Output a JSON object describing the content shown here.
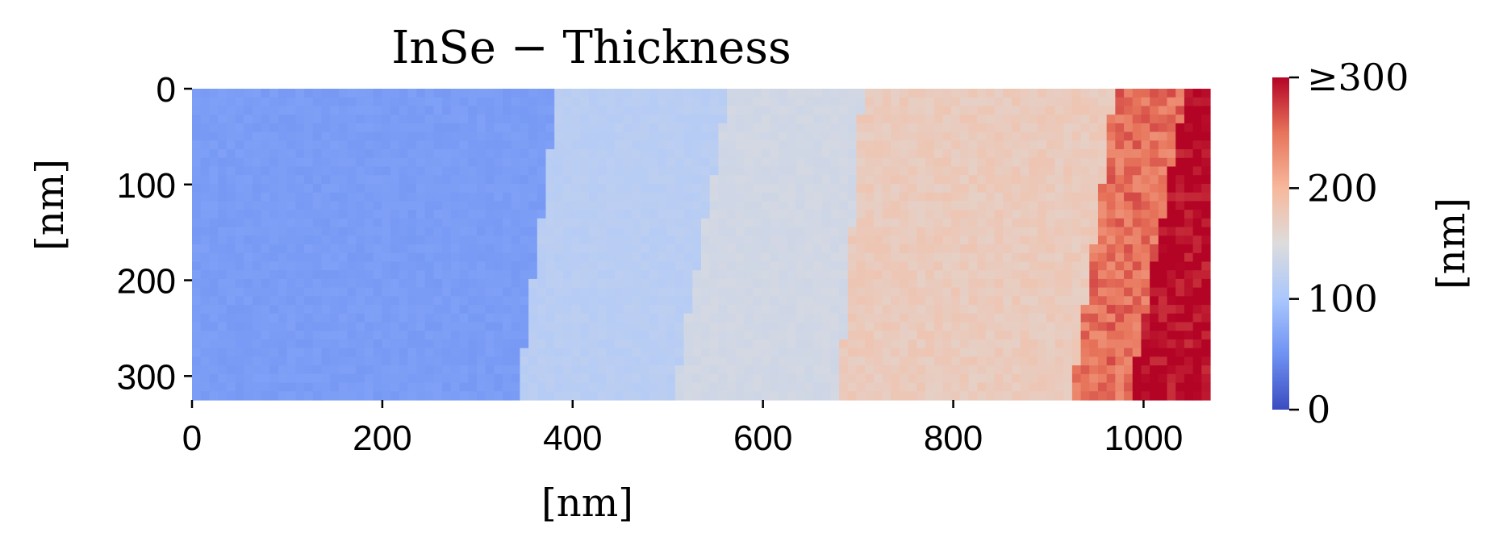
{
  "chart_data": {
    "type": "heatmap",
    "title": "InSe − Thickness",
    "xlabel": "[nm]",
    "ylabel": "[nm]",
    "xlim": [
      0,
      1070
    ],
    "ylim": [
      325,
      0
    ],
    "x_ticks": [
      0,
      200,
      400,
      600,
      800,
      1000
    ],
    "x_tick_labels": [
      "0",
      "200",
      "400",
      "600",
      "800",
      "1000"
    ],
    "y_ticks": [
      0,
      100,
      200,
      300
    ],
    "y_tick_labels": [
      "0",
      "100",
      "200",
      "300"
    ],
    "colorbar": {
      "label": "[nm]",
      "colormap": "coolwarm",
      "vmin": 0,
      "vmax": 300,
      "ticks": [
        0,
        100,
        200,
        300
      ],
      "tick_labels": [
        "0",
        "100",
        "200",
        "≥300"
      ],
      "colors": [
        "#3b4cc0",
        "#6f92f3",
        "#aac7fd",
        "#dddcdc",
        "#f7b89c",
        "#e7745b",
        "#b40426"
      ]
    },
    "grid": false,
    "regions": [
      {
        "name": "band-1",
        "x_range_top": [
          0,
          385
        ],
        "x_range_bottom": [
          0,
          342
        ],
        "thickness_nm": 60
      },
      {
        "name": "band-2",
        "x_range_top": [
          385,
          565
        ],
        "x_range_bottom": [
          342,
          505
        ],
        "thickness_nm": 115
      },
      {
        "name": "band-3",
        "x_range_top": [
          565,
          705
        ],
        "x_range_bottom": [
          505,
          680
        ],
        "thickness_nm": 138
      },
      {
        "name": "band-4",
        "x_range_top": [
          705,
          970
        ],
        "x_range_bottom": [
          680,
          925
        ],
        "thickness_nm": 175
      },
      {
        "name": "band-5",
        "x_range_top": [
          970,
          1045
        ],
        "x_range_bottom": [
          925,
          985
        ],
        "thickness_nm": 250
      },
      {
        "name": "band-6",
        "x_range_top": [
          1045,
          1070
        ],
        "x_range_bottom": [
          985,
          1070
        ],
        "thickness_nm": 300
      }
    ]
  }
}
